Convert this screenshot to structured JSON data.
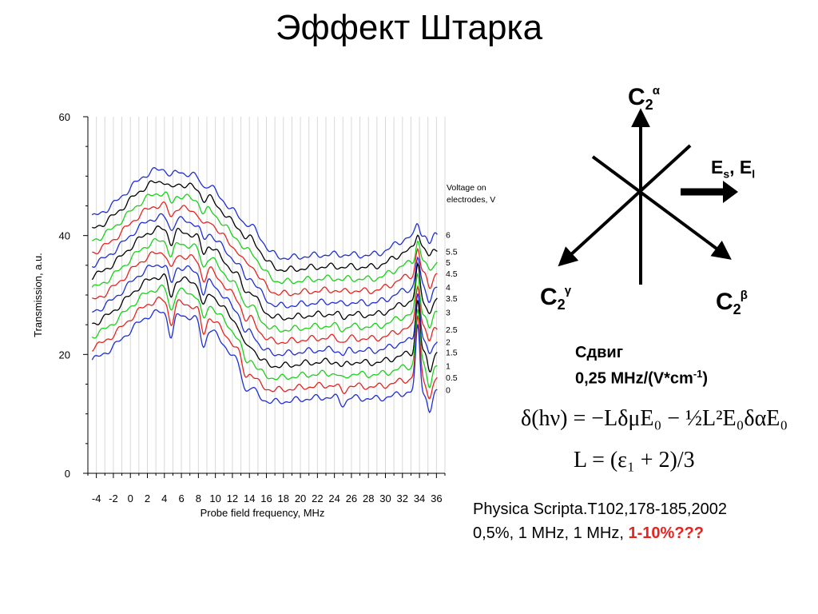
{
  "slide": {
    "title": "Эффект Штарка"
  },
  "diagram": {
    "c2_alpha": {
      "base": "C",
      "sub": "2",
      "sup": "α"
    },
    "c2_gamma": {
      "base": "C",
      "sub": "2",
      "sup": "γ"
    },
    "c2_beta": {
      "base": "C",
      "sub": "2",
      "sup": "β"
    },
    "field": {
      "e1": "E",
      "s1": "s",
      "sep": ", ",
      "e2": "E",
      "s2": "l"
    }
  },
  "shift": {
    "label": "Сдвиг",
    "value_a": "0,25 MHz/(V*cm",
    "value_exp": "-1",
    "value_b": ")"
  },
  "formulas": {
    "line1": "δ(hν) = −LδμE₀ − ½L²E₀δαE₀",
    "line2": "L = (ε₁ + 2)/3"
  },
  "reference": {
    "line1": "Physica Scripta.T102,178-185,2002",
    "line2_prefix": "0,5%, 1 MHz, 1 MHz, ",
    "line2_highlight": "1-10%???"
  },
  "colors": {
    "black": "#000000",
    "red": "#e8231f",
    "green": "#19d219",
    "blue": "#1e2ed8",
    "highlight": "#e8231f"
  },
  "chart_data": {
    "type": "line",
    "xlabel": "Probe field frequency, MHz",
    "ylabel": "Transmission, a.u.",
    "xlim": [
      -5,
      37
    ],
    "ylim": [
      0,
      60
    ],
    "xticks": [
      -4,
      -2,
      0,
      2,
      4,
      6,
      8,
      10,
      12,
      14,
      16,
      18,
      20,
      22,
      24,
      26,
      28,
      30,
      32,
      34,
      36
    ],
    "yticks": [
      0,
      20,
      40,
      60
    ],
    "legend_title": "Voltage on electrodes, V",
    "legend_placement": "right",
    "grid": "vertical",
    "series": [
      {
        "name": "6",
        "color": "#1e2ed8",
        "offset": 28.0
      },
      {
        "name": "5.5",
        "color": "#000000",
        "offset": 26.0
      },
      {
        "name": "5",
        "color": "#19d219",
        "offset": 24.0
      },
      {
        "name": "4.5",
        "color": "#e8231f",
        "offset": 22.0
      },
      {
        "name": "4",
        "color": "#1e2ed8",
        "offset": 20.0
      },
      {
        "name": "3.5",
        "color": "#000000",
        "offset": 18.0
      },
      {
        "name": "3",
        "color": "#19d219",
        "offset": 16.0
      },
      {
        "name": "2.5",
        "color": "#e8231f",
        "offset": 14.0
      },
      {
        "name": "2",
        "color": "#1e2ed8",
        "offset": 12.0
      },
      {
        "name": "1.5",
        "color": "#000000",
        "offset": 10.0
      },
      {
        "name": "1",
        "color": "#19d219",
        "offset": 8.0
      },
      {
        "name": "0.5",
        "color": "#e8231f",
        "offset": 6.0
      },
      {
        "name": "0",
        "color": "#1e2ed8",
        "offset": 4.0
      }
    ]
  }
}
